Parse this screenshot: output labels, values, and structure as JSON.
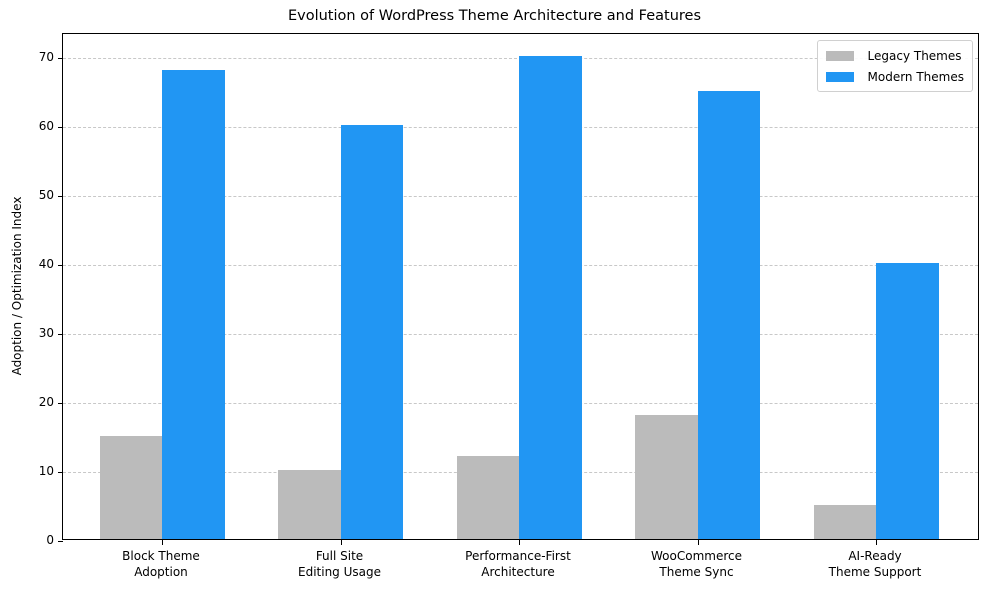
{
  "chart_data": {
    "type": "bar",
    "title": "Evolution of WordPress Theme Architecture and Features",
    "xlabel": "",
    "ylabel": "Adoption / Optimization Index",
    "categories": [
      "Block Theme\nAdoption",
      "Full Site\nEditing Usage",
      "Performance-First\nArchitecture",
      "WooCommerce\nTheme Sync",
      "AI-Ready\nTheme Support"
    ],
    "series": [
      {
        "name": "Legacy Themes",
        "color": "#bbbbbb",
        "values": [
          15,
          10,
          12,
          18,
          5
        ]
      },
      {
        "name": "Modern Themes",
        "color": "#2196f3",
        "values": [
          68,
          60,
          70,
          65,
          40
        ]
      }
    ],
    "ylim": [
      0,
      73.5
    ],
    "yticks": [
      0,
      10,
      20,
      30,
      40,
      50,
      60,
      70
    ],
    "grid": {
      "axis": "y",
      "style": "dashed"
    },
    "legend_position": "upper right"
  }
}
